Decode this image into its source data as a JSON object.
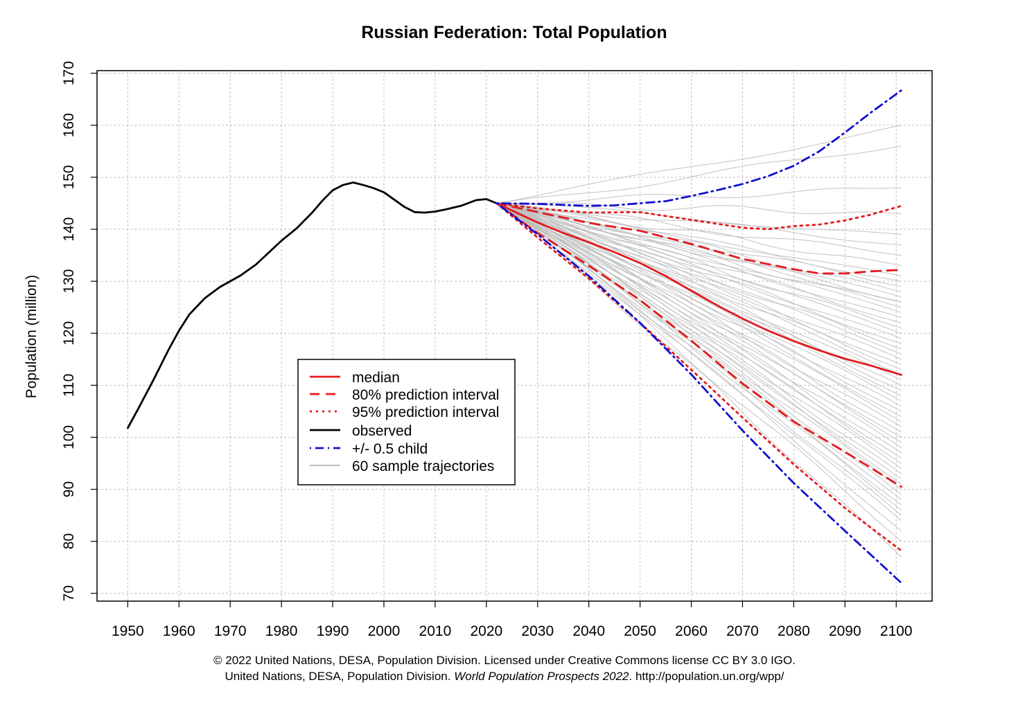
{
  "chart_data": {
    "type": "line",
    "title": "Russian Federation: Total Population",
    "ylabel": "Population (million)",
    "xlabel": "",
    "xlim": [
      1944,
      2107
    ],
    "ylim": [
      68.5,
      170.5
    ],
    "x_ticks": [
      1950,
      1960,
      1970,
      1980,
      1990,
      2000,
      2010,
      2020,
      2030,
      2040,
      2050,
      2060,
      2070,
      2080,
      2090,
      2100
    ],
    "y_ticks": [
      70,
      80,
      90,
      100,
      110,
      120,
      130,
      140,
      150,
      160,
      170
    ],
    "grid": true,
    "legend_position": "center-left",
    "colors": {
      "median": "#e41a1c",
      "pi80": "#e41a1c",
      "pi95": "#e41a1c",
      "observed": "#000000",
      "half_child": "#1010d0",
      "trajectories": "#bdbdbd",
      "grid": "#bebebe"
    },
    "series": [
      {
        "name": "median",
        "style": "solid",
        "x": [
          2022,
          2025,
          2030,
          2035,
          2040,
          2045,
          2050,
          2055,
          2060,
          2065,
          2070,
          2075,
          2080,
          2085,
          2090,
          2095,
          2101
        ],
        "y": [
          145.0,
          143.6,
          141.3,
          139.3,
          137.5,
          135.6,
          133.5,
          131.0,
          128.2,
          125.4,
          122.8,
          120.5,
          118.5,
          116.7,
          115.1,
          113.8,
          112.0
        ]
      },
      {
        "name": "80% prediction interval (upper)",
        "style": "dashed",
        "x": [
          2022,
          2030,
          2040,
          2050,
          2060,
          2070,
          2080,
          2085,
          2090,
          2095,
          2101
        ],
        "y": [
          145.0,
          143.3,
          141.2,
          139.7,
          137.2,
          134.3,
          132.3,
          131.5,
          131.5,
          131.9,
          132.2
        ]
      },
      {
        "name": "80% prediction interval (lower)",
        "style": "dashed",
        "x": [
          2022,
          2030,
          2040,
          2050,
          2060,
          2070,
          2080,
          2090,
          2101
        ],
        "y": [
          145.0,
          139.3,
          133.0,
          126.4,
          118.6,
          110.3,
          103.0,
          97.2,
          90.5
        ]
      },
      {
        "name": "95% prediction interval (upper)",
        "style": "dotted",
        "x": [
          2022,
          2030,
          2040,
          2050,
          2060,
          2070,
          2075,
          2080,
          2085,
          2090,
          2095,
          2101
        ],
        "y": [
          145.0,
          144.0,
          143.2,
          143.3,
          141.8,
          140.3,
          140.0,
          140.6,
          140.9,
          141.7,
          142.8,
          144.5
        ]
      },
      {
        "name": "95% prediction interval (lower)",
        "style": "dotted",
        "x": [
          2022,
          2030,
          2040,
          2050,
          2060,
          2070,
          2080,
          2090,
          2101
        ],
        "y": [
          145.0,
          138.4,
          130.5,
          122.0,
          113.0,
          103.8,
          94.8,
          86.4,
          78.2
        ]
      },
      {
        "name": "observed",
        "style": "solid",
        "x": [
          1950,
          1952,
          1955,
          1958,
          1960,
          1962,
          1965,
          1968,
          1970,
          1972,
          1975,
          1980,
          1983,
          1986,
          1988,
          1990,
          1992,
          1994,
          1996,
          1998,
          2000,
          2002,
          2004,
          2006,
          2008,
          2010,
          2012,
          2015,
          2018,
          2020,
          2022
        ],
        "y": [
          101.8,
          105.4,
          111.0,
          116.9,
          120.5,
          123.6,
          126.7,
          128.9,
          130.0,
          131.1,
          133.2,
          137.8,
          140.2,
          143.2,
          145.5,
          147.5,
          148.5,
          149.0,
          148.5,
          147.9,
          147.1,
          145.7,
          144.3,
          143.3,
          143.2,
          143.4,
          143.8,
          144.5,
          145.6,
          145.8,
          145.0
        ]
      },
      {
        "name": "+/- 0.5 child (upper)",
        "style": "dotdash",
        "x": [
          2022,
          2030,
          2040,
          2045,
          2050,
          2055,
          2060,
          2065,
          2070,
          2075,
          2080,
          2085,
          2090,
          2095,
          2101
        ],
        "y": [
          145.0,
          144.9,
          144.5,
          144.6,
          145.0,
          145.4,
          146.4,
          147.5,
          148.7,
          150.2,
          152.2,
          155.0,
          158.6,
          162.4,
          166.7
        ]
      },
      {
        "name": "+/- 0.5 child (lower)",
        "style": "dotdash",
        "x": [
          2022,
          2030,
          2040,
          2050,
          2060,
          2070,
          2080,
          2090,
          2101
        ],
        "y": [
          145.0,
          139.0,
          131.0,
          122.0,
          112.1,
          101.3,
          91.2,
          82.0,
          72.0
        ]
      }
    ],
    "trajectory_endpoints_2101": [
      160,
      156,
      148,
      143,
      139,
      137,
      135,
      133,
      131,
      130,
      129,
      128,
      127,
      126,
      126,
      125,
      124,
      123,
      122,
      121,
      120,
      119,
      118,
      117,
      116,
      115,
      114,
      113,
      112,
      111,
      110,
      109,
      108,
      107,
      106,
      105,
      104,
      103,
      102,
      101,
      100,
      99,
      98,
      97,
      96,
      95,
      94,
      93,
      92,
      91,
      90,
      89,
      88,
      87,
      86,
      85,
      84,
      82,
      80,
      77
    ]
  },
  "legend": {
    "items": [
      {
        "label": "median",
        "style": "solid",
        "color": "#e41a1c"
      },
      {
        "label": "80% prediction interval",
        "style": "dashed",
        "color": "#e41a1c"
      },
      {
        "label": "95% prediction interval",
        "style": "dotted",
        "color": "#e41a1c"
      },
      {
        "label": "observed",
        "style": "solid",
        "color": "#000000"
      },
      {
        "label": "+/- 0.5 child",
        "style": "dotdash",
        "color": "#1010d0"
      },
      {
        "label": "60 sample trajectories",
        "style": "solid",
        "color": "#bdbdbd"
      }
    ]
  },
  "footer": {
    "line1": "© 2022 United Nations, DESA, Population Division. Licensed under Creative Commons license CC BY 3.0 IGO.",
    "line2_prefix": "United Nations, DESA, Population Division. ",
    "line2_italic": "World Population Prospects 2022",
    "line2_suffix": ". http://population.un.org/wpp/"
  }
}
